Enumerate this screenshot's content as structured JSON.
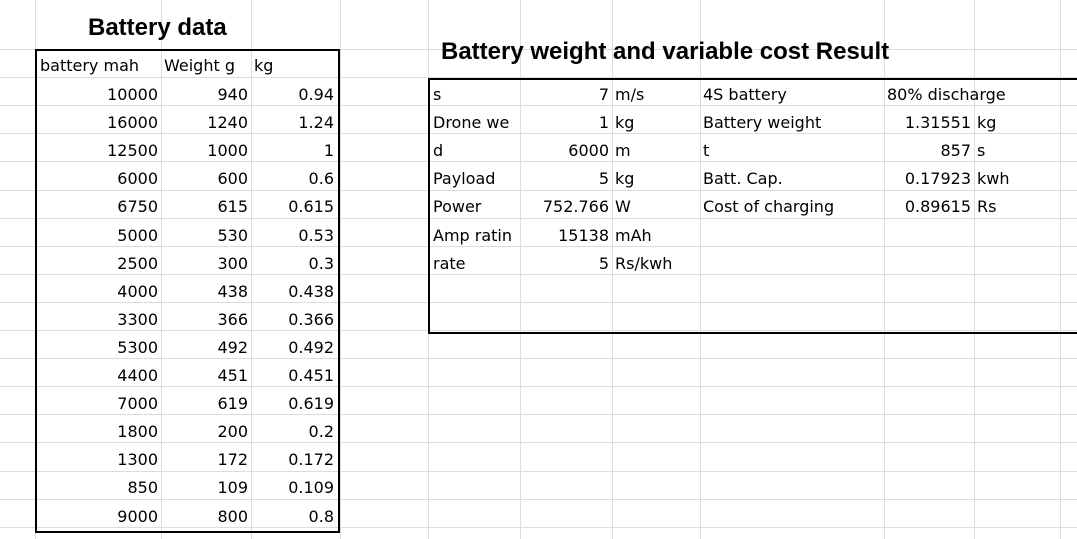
{
  "battery_data": {
    "title": "Battery data",
    "headers": [
      "battery mah",
      "Weight g",
      "kg"
    ],
    "rows": [
      [
        "10000",
        "940",
        "0.94"
      ],
      [
        "16000",
        "1240",
        "1.24"
      ],
      [
        "12500",
        "1000",
        "1"
      ],
      [
        "6000",
        "600",
        "0.6"
      ],
      [
        "6750",
        "615",
        "0.615"
      ],
      [
        "5000",
        "530",
        "0.53"
      ],
      [
        "2500",
        "300",
        "0.3"
      ],
      [
        "4000",
        "438",
        "0.438"
      ],
      [
        "3300",
        "366",
        "0.366"
      ],
      [
        "5300",
        "492",
        "0.492"
      ],
      [
        "4400",
        "451",
        "0.451"
      ],
      [
        "7000",
        "619",
        "0.619"
      ],
      [
        "1800",
        "200",
        "0.2"
      ],
      [
        "1300",
        "172",
        "0.172"
      ],
      [
        "850",
        "109",
        "0.109"
      ],
      [
        "9000",
        "800",
        "0.8"
      ]
    ]
  },
  "result": {
    "title": "Battery weight and variable cost Result",
    "inputs": [
      {
        "label": "s",
        "value": "7",
        "unit": "m/s"
      },
      {
        "label": "Drone we",
        "value": "1",
        "unit": "kg"
      },
      {
        "label": "d",
        "value": "6000",
        "unit": "m"
      },
      {
        "label": "Payload",
        "value": "5",
        "unit": "kg"
      },
      {
        "label": "Power",
        "value": "752.766",
        "unit": "W"
      },
      {
        "label": "Amp ratin",
        "value": "15138",
        "unit": "mAh"
      },
      {
        "label": "rate",
        "value": "5",
        "unit": "Rs/kwh"
      }
    ],
    "outputs": [
      {
        "label": "4S battery",
        "value": "80% discharge",
        "unit": ""
      },
      {
        "label": "Battery weight",
        "value": "1.31551",
        "unit": "kg"
      },
      {
        "label": "t",
        "value": "857",
        "unit": "s"
      },
      {
        "label": "Batt. Cap.",
        "value": "0.17923",
        "unit": "kwh"
      },
      {
        "label": "Cost of charging",
        "value": "0.89615",
        "unit": "Rs"
      }
    ]
  }
}
